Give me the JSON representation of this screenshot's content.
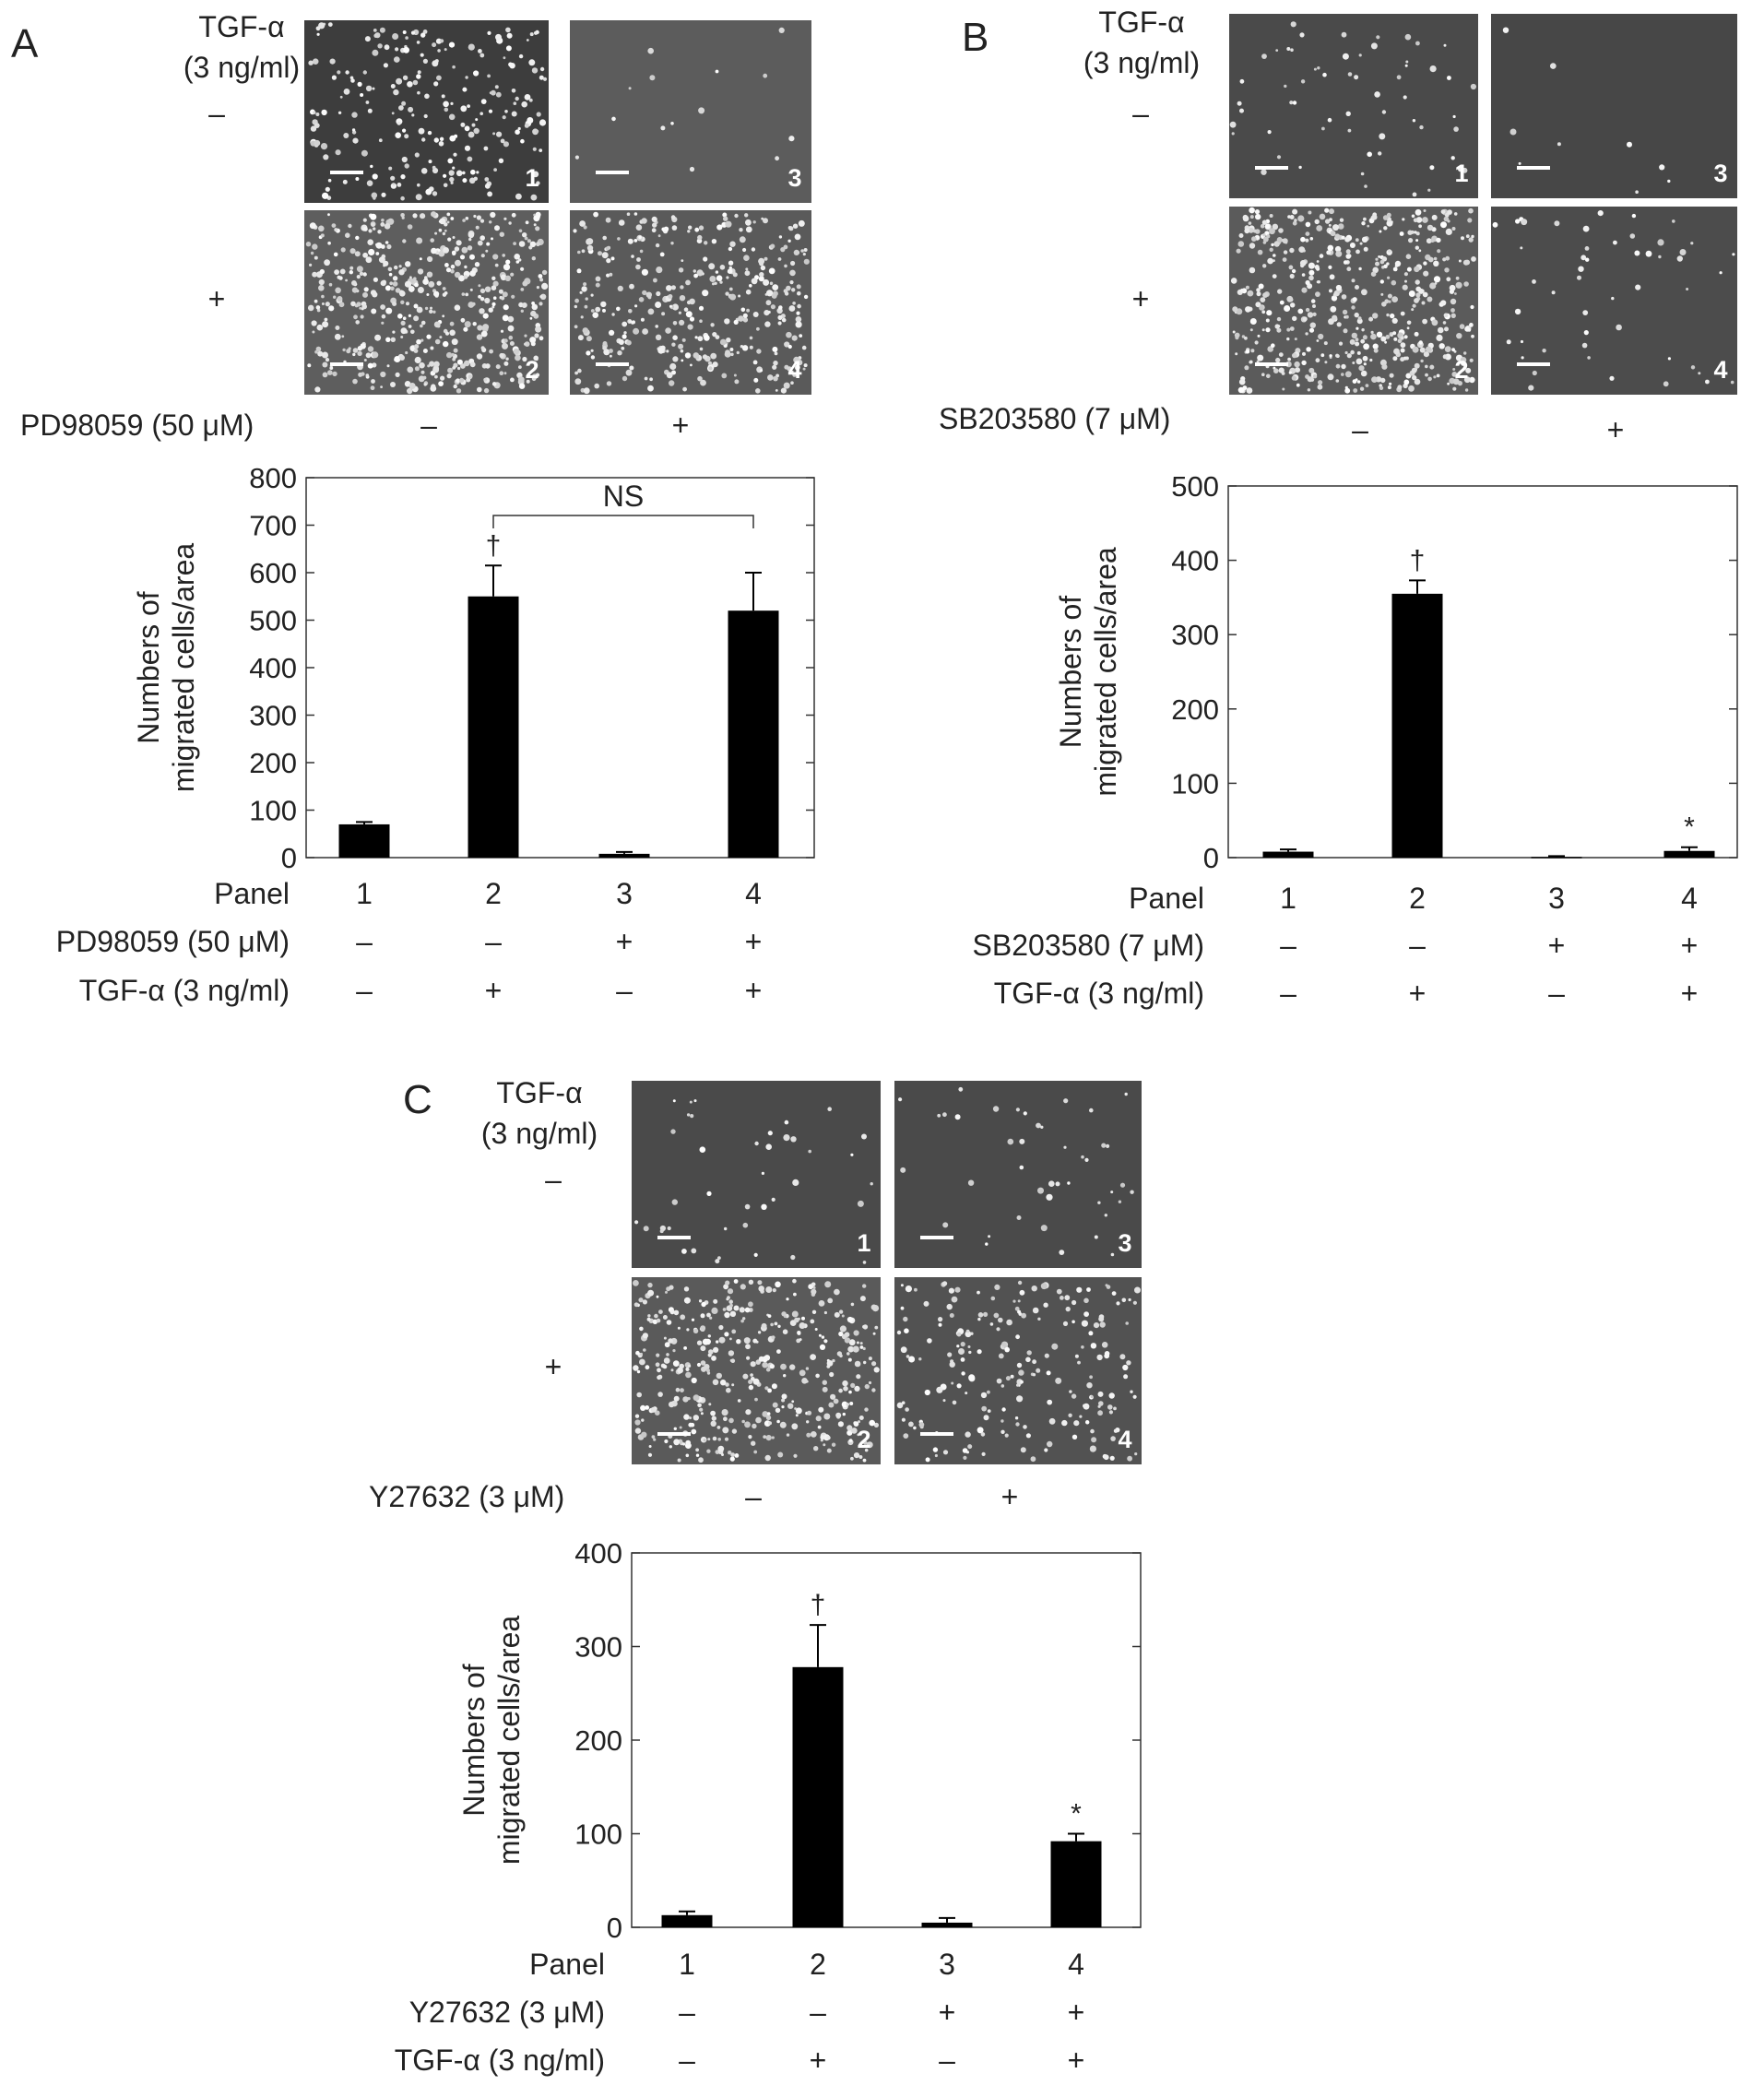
{
  "panels": [
    {
      "letter": "A",
      "tgf_header": [
        "TGF-α",
        "(3 ng/ml)"
      ],
      "row_signs": [
        "–",
        "+"
      ],
      "inhibitor_label": "PD98059 (50 μM)",
      "inhibitor_signs": [
        "–",
        "+"
      ],
      "micro_numbers": [
        "1",
        "3",
        "2",
        "4"
      ],
      "table_labels": [
        "Panel",
        "PD98059 (50 μM)",
        "TGF-α (3 ng/ml)"
      ],
      "table_values": [
        [
          "1",
          "2",
          "3",
          "4"
        ],
        [
          "–",
          "–",
          "+",
          "+"
        ],
        [
          "–",
          "+",
          "–",
          "+"
        ]
      ]
    },
    {
      "letter": "B",
      "tgf_header": [
        "TGF-α",
        "(3 ng/ml)"
      ],
      "row_signs": [
        "–",
        "+"
      ],
      "inhibitor_label": "SB203580 (7 μM)",
      "inhibitor_signs": [
        "–",
        "+"
      ],
      "micro_numbers": [
        "1",
        "3",
        "2",
        "4"
      ],
      "table_labels": [
        "Panel",
        "SB203580 (7 μM)",
        "TGF-α (3 ng/ml)"
      ],
      "table_values": [
        [
          "1",
          "2",
          "3",
          "4"
        ],
        [
          "–",
          "–",
          "+",
          "+"
        ],
        [
          "–",
          "+",
          "–",
          "+"
        ]
      ]
    },
    {
      "letter": "C",
      "tgf_header": [
        "TGF-α",
        "(3 ng/ml)"
      ],
      "row_signs": [
        "–",
        "+"
      ],
      "inhibitor_label": "Y27632 (3 μM)",
      "inhibitor_signs": [
        "–",
        "+"
      ],
      "micro_numbers": [
        "1",
        "3",
        "2",
        "4"
      ],
      "table_labels": [
        "Panel",
        "Y27632 (3 μM)",
        "TGF-α (3 ng/ml)"
      ],
      "table_values": [
        [
          "1",
          "2",
          "3",
          "4"
        ],
        [
          "–",
          "–",
          "+",
          "+"
        ],
        [
          "–",
          "+",
          "–",
          "+"
        ]
      ]
    }
  ],
  "chart_data": [
    {
      "type": "bar",
      "categories": [
        "1",
        "2",
        "3",
        "4"
      ],
      "values": [
        70,
        550,
        8,
        520
      ],
      "errors": [
        5,
        65,
        4,
        80
      ],
      "ylabel": [
        "Numbers of",
        "migrated cells/area"
      ],
      "ylim": [
        0,
        800
      ],
      "yticks": [
        0,
        100,
        200,
        300,
        400,
        500,
        600,
        700,
        800
      ],
      "markers": [
        "",
        "†",
        "",
        ""
      ],
      "bracket": {
        "from": 1,
        "to": 3,
        "label": "NS"
      },
      "bar_color": "#000000"
    },
    {
      "type": "bar",
      "categories": [
        "1",
        "2",
        "3",
        "4"
      ],
      "values": [
        8,
        355,
        1,
        9
      ],
      "errors": [
        3,
        18,
        1,
        5
      ],
      "ylabel": [
        "Numbers of",
        "migrated cells/area"
      ],
      "ylim": [
        0,
        500
      ],
      "yticks": [
        0,
        100,
        200,
        300,
        400,
        500
      ],
      "markers": [
        "",
        "†",
        "",
        "*"
      ],
      "bar_color": "#000000"
    },
    {
      "type": "bar",
      "categories": [
        "1",
        "2",
        "3",
        "4"
      ],
      "values": [
        13,
        278,
        5,
        92
      ],
      "errors": [
        4,
        45,
        5,
        8
      ],
      "ylabel": [
        "Numbers of",
        "migrated cells/area"
      ],
      "ylim": [
        0,
        400
      ],
      "yticks": [
        0,
        100,
        200,
        300,
        400
      ],
      "markers": [
        "",
        "†",
        "",
        "*"
      ],
      "bar_color": "#000000"
    }
  ]
}
